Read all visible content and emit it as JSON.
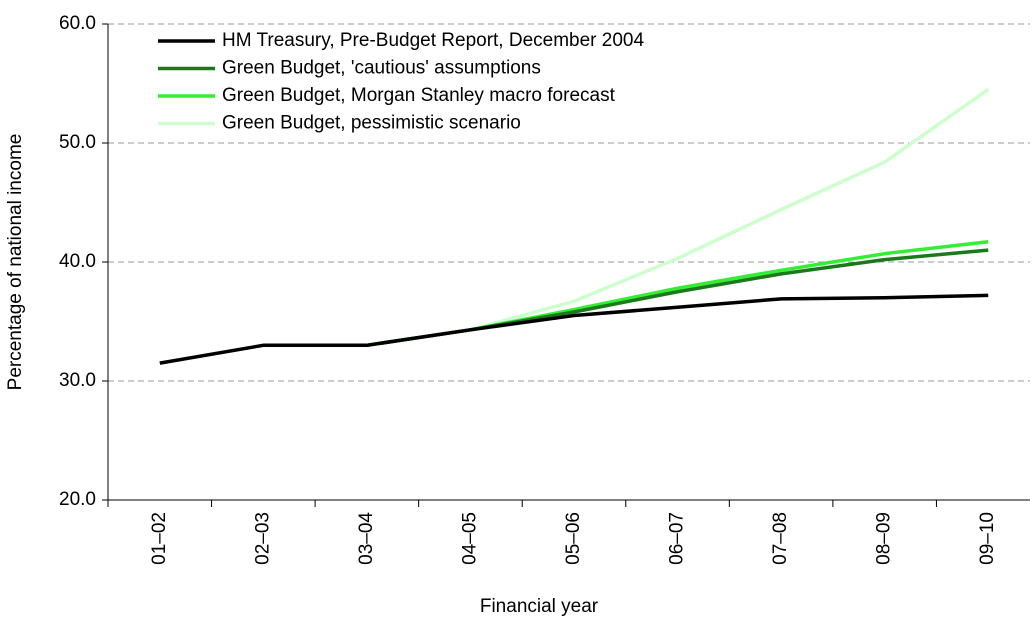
{
  "chart_data": {
    "type": "line",
    "x_label": "Financial year",
    "y_label": "Percentage of national income",
    "categories": [
      "01–02",
      "02–03",
      "03–04",
      "04–05",
      "05–06",
      "06–07",
      "07–08",
      "08–09",
      "09–10"
    ],
    "series": [
      {
        "name": "HM Treasury, Pre-Budget Report, December 2004",
        "color": "#000000",
        "values": [
          31.5,
          33.0,
          33.0,
          34.3,
          35.5,
          36.2,
          36.9,
          37.0,
          37.2
        ]
      },
      {
        "name": "Green Budget, 'cautious' assumptions",
        "color": "#1a7a1a",
        "values": [
          null,
          null,
          33.0,
          34.3,
          35.8,
          37.5,
          39.0,
          40.2,
          41.0
        ]
      },
      {
        "name": "Green Budget, Morgan Stanley macro forecast",
        "color": "#33ee33",
        "values": [
          null,
          null,
          33.0,
          34.3,
          36.0,
          37.8,
          39.3,
          40.7,
          41.7
        ]
      },
      {
        "name": "Green Budget, pessimistic scenario",
        "color": "#ccffcc",
        "values": [
          null,
          null,
          33.0,
          34.3,
          36.7,
          40.3,
          44.4,
          48.4,
          54.5
        ]
      }
    ],
    "ylim": [
      20,
      60
    ],
    "yticks": [
      {
        "value": 20,
        "label": "20.0"
      },
      {
        "value": 30,
        "label": "30.0"
      },
      {
        "value": 40,
        "label": "40.0"
      },
      {
        "value": 50,
        "label": "50.0"
      },
      {
        "value": 60,
        "label": "60.0"
      }
    ],
    "grid": true,
    "legend": "upper-left"
  }
}
